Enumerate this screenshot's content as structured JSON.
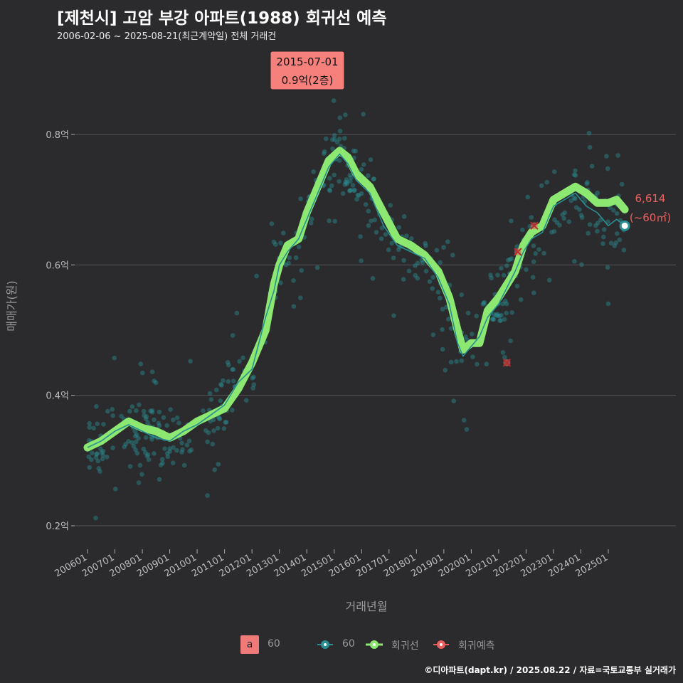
{
  "title": "[제천시] 고암 부강 아파트(1988) 회귀선 예측",
  "subtitle": "2006-02-06 ~ 2025-08-21(최근계약일) 전체 거래건",
  "caption": "©디아파트(dapt.kr) / 2025.08.22 / 자료=국토교통부 실거래가",
  "colors": {
    "background": "#2b2b2d",
    "teal": "#2a8f93",
    "green": "#8de872",
    "red": "#e8605e",
    "tooltip": "#f5807c"
  },
  "legend": {
    "badge_letter": "a",
    "badge_label": "60",
    "series_label": "60",
    "regression_label": "회귀선",
    "forecast_label": "회귀예측"
  },
  "tooltip": {
    "date": "2015-07-01",
    "value": "0.9억(2층)"
  },
  "end_label": {
    "count": "6,614",
    "area": "(~60㎡)"
  },
  "chart_data": {
    "type": "line",
    "xlabel": "거래년월",
    "ylabel": "매매가(원)",
    "ylim": [
      0.15,
      0.93
    ],
    "x_ticks": [
      "200601",
      "200701",
      "200801",
      "200901",
      "201001",
      "201101",
      "201201",
      "201301",
      "201401",
      "201501",
      "201601",
      "201701",
      "201801",
      "201901",
      "202001",
      "202101",
      "202201",
      "202301",
      "202401",
      "202501"
    ],
    "y_ticks": [
      {
        "value": 0.2,
        "label": "0.2억"
      },
      {
        "value": 0.4,
        "label": "0.4억"
      },
      {
        "value": 0.6,
        "label": "0.6억"
      },
      {
        "value": 0.8,
        "label": "0.8억"
      }
    ],
    "regression": [
      [
        2006.0,
        0.32
      ],
      [
        2006.5,
        0.33
      ],
      [
        2007.0,
        0.345
      ],
      [
        2007.5,
        0.36
      ],
      [
        2008.0,
        0.35
      ],
      [
        2008.5,
        0.345
      ],
      [
        2009.0,
        0.335
      ],
      [
        2009.5,
        0.345
      ],
      [
        2010.0,
        0.36
      ],
      [
        2010.5,
        0.37
      ],
      [
        2011.0,
        0.38
      ],
      [
        2011.5,
        0.41
      ],
      [
        2012.0,
        0.45
      ],
      [
        2012.5,
        0.5
      ],
      [
        2012.8,
        0.57
      ],
      [
        2013.0,
        0.6
      ],
      [
        2013.3,
        0.63
      ],
      [
        2013.7,
        0.64
      ],
      [
        2014.0,
        0.68
      ],
      [
        2014.5,
        0.73
      ],
      [
        2014.8,
        0.76
      ],
      [
        2015.2,
        0.775
      ],
      [
        2015.5,
        0.765
      ],
      [
        2015.8,
        0.74
      ],
      [
        2016.3,
        0.72
      ],
      [
        2016.8,
        0.68
      ],
      [
        2017.3,
        0.64
      ],
      [
        2017.8,
        0.63
      ],
      [
        2018.3,
        0.615
      ],
      [
        2018.8,
        0.59
      ],
      [
        2019.2,
        0.55
      ],
      [
        2019.5,
        0.5
      ],
      [
        2019.7,
        0.47
      ],
      [
        2020.0,
        0.48
      ],
      [
        2020.3,
        0.48
      ],
      [
        2020.6,
        0.53
      ],
      [
        2021.0,
        0.55
      ],
      [
        2021.3,
        0.57
      ],
      [
        2021.6,
        0.59
      ],
      [
        2021.9,
        0.63
      ],
      [
        2022.2,
        0.65
      ],
      [
        2022.6,
        0.66
      ],
      [
        2023.0,
        0.7
      ],
      [
        2023.4,
        0.71
      ],
      [
        2023.8,
        0.72
      ],
      [
        2024.2,
        0.71
      ],
      [
        2024.6,
        0.695
      ],
      [
        2025.0,
        0.695
      ],
      [
        2025.3,
        0.7
      ],
      [
        2025.6,
        0.685
      ]
    ],
    "trend_60": [
      [
        2006.0,
        0.32
      ],
      [
        2006.5,
        0.33
      ],
      [
        2007.0,
        0.345
      ],
      [
        2007.5,
        0.355
      ],
      [
        2008.0,
        0.345
      ],
      [
        2008.5,
        0.335
      ],
      [
        2009.0,
        0.33
      ],
      [
        2009.5,
        0.345
      ],
      [
        2010.0,
        0.355
      ],
      [
        2010.5,
        0.37
      ],
      [
        2011.0,
        0.385
      ],
      [
        2011.5,
        0.42
      ],
      [
        2012.0,
        0.44
      ],
      [
        2012.5,
        0.52
      ],
      [
        2012.8,
        0.56
      ],
      [
        2013.0,
        0.6
      ],
      [
        2013.3,
        0.62
      ],
      [
        2013.7,
        0.64
      ],
      [
        2014.0,
        0.67
      ],
      [
        2014.5,
        0.72
      ],
      [
        2014.8,
        0.75
      ],
      [
        2015.2,
        0.77
      ],
      [
        2015.5,
        0.755
      ],
      [
        2015.8,
        0.73
      ],
      [
        2016.3,
        0.71
      ],
      [
        2016.8,
        0.66
      ],
      [
        2017.3,
        0.63
      ],
      [
        2017.8,
        0.62
      ],
      [
        2018.3,
        0.61
      ],
      [
        2018.8,
        0.58
      ],
      [
        2019.2,
        0.54
      ],
      [
        2019.5,
        0.48
      ],
      [
        2019.7,
        0.46
      ],
      [
        2020.0,
        0.475
      ],
      [
        2020.3,
        0.49
      ],
      [
        2020.6,
        0.52
      ],
      [
        2021.0,
        0.54
      ],
      [
        2021.3,
        0.565
      ],
      [
        2021.6,
        0.59
      ],
      [
        2021.9,
        0.62
      ],
      [
        2022.2,
        0.64
      ],
      [
        2022.6,
        0.65
      ],
      [
        2023.0,
        0.69
      ],
      [
        2023.4,
        0.7
      ],
      [
        2023.8,
        0.71
      ],
      [
        2024.2,
        0.69
      ],
      [
        2024.6,
        0.68
      ],
      [
        2025.0,
        0.66
      ],
      [
        2025.3,
        0.67
      ],
      [
        2025.6,
        0.66
      ]
    ],
    "forecast_points": [
      [
        2021.3,
        0.45
      ],
      [
        2021.7,
        0.62
      ],
      [
        2022.3,
        0.66
      ]
    ],
    "last_point": [
      2025.6,
      0.66
    ]
  }
}
